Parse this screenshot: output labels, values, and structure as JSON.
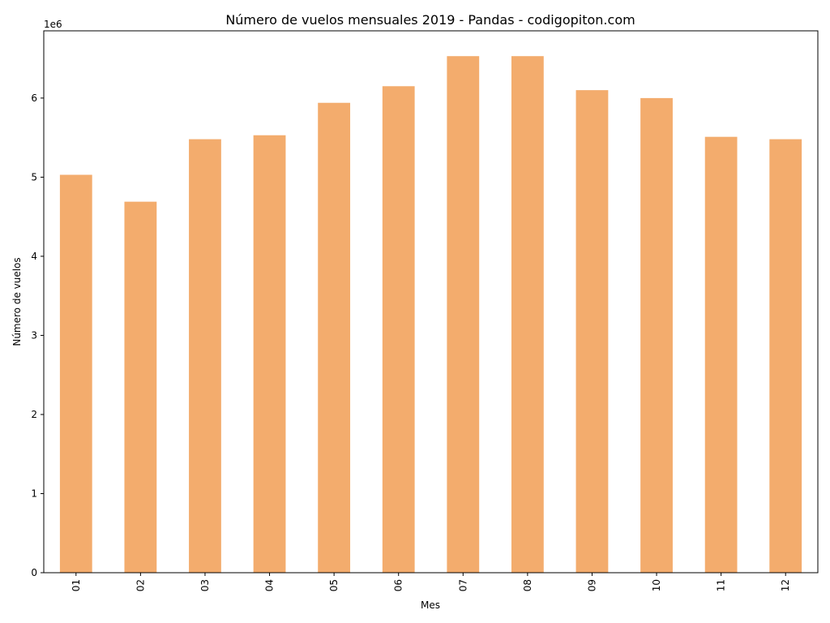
{
  "chart_data": {
    "type": "bar",
    "title": "Número de vuelos mensuales 2019 - Pandas - codigopiton.com",
    "xlabel": "Mes",
    "ylabel": "Número de vuelos",
    "y_offset_label": "1e6",
    "categories": [
      "01",
      "02",
      "03",
      "04",
      "05",
      "06",
      "07",
      "08",
      "09",
      "10",
      "11",
      "12"
    ],
    "values": [
      5.03,
      4.69,
      5.48,
      5.53,
      5.94,
      6.15,
      6.53,
      6.53,
      6.1,
      6.0,
      5.51,
      5.48
    ],
    "y_ticks": [
      "0",
      "1",
      "2",
      "3",
      "4",
      "5",
      "6"
    ],
    "ylim": [
      0,
      6.85
    ],
    "grid": false,
    "legend": "none",
    "bar_color": "#f3ac6d",
    "x_tick_rotation": "vertical"
  }
}
